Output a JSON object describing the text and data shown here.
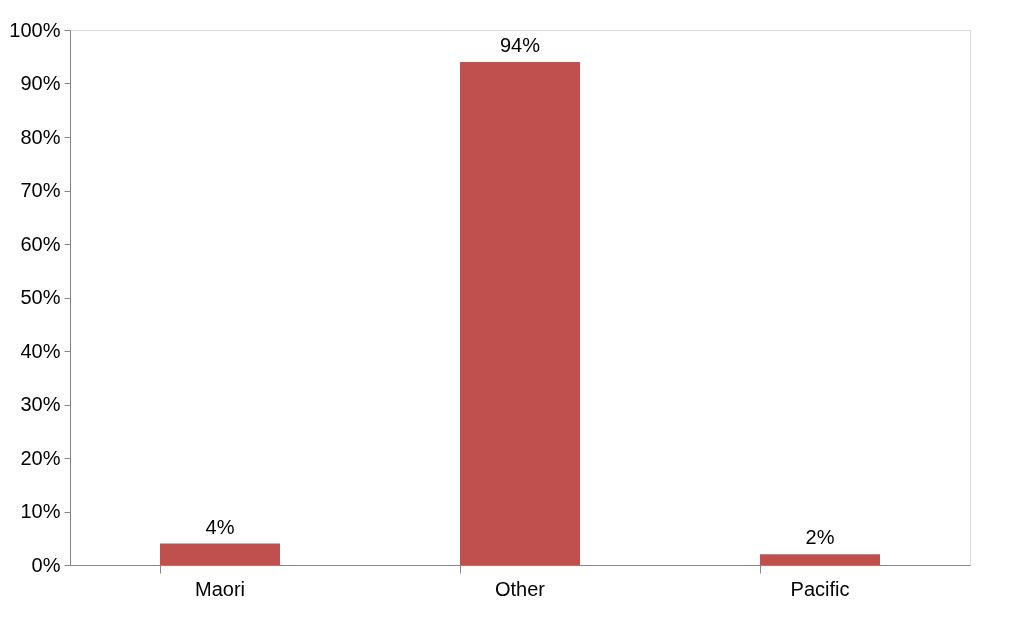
{
  "chart_data": {
    "type": "bar",
    "categories": [
      "Maori",
      "Other",
      "Pacific"
    ],
    "values": [
      4,
      94,
      2
    ],
    "color": "#c0504d",
    "value_labels": [
      "4%",
      "94%",
      "2%"
    ],
    "ylim": [
      0,
      100
    ],
    "yticks": [
      {
        "value": 0,
        "label": "0%"
      },
      {
        "value": 10,
        "label": "10%"
      },
      {
        "value": 20,
        "label": "20%"
      },
      {
        "value": 30,
        "label": "30%"
      },
      {
        "value": 40,
        "label": "40%"
      },
      {
        "value": 50,
        "label": "50%"
      },
      {
        "value": 60,
        "label": "60%"
      },
      {
        "value": 70,
        "label": "70%"
      },
      {
        "value": 80,
        "label": "80%"
      },
      {
        "value": 90,
        "label": "90%"
      },
      {
        "value": 100,
        "label": "100%"
      }
    ],
    "grid": false
  }
}
